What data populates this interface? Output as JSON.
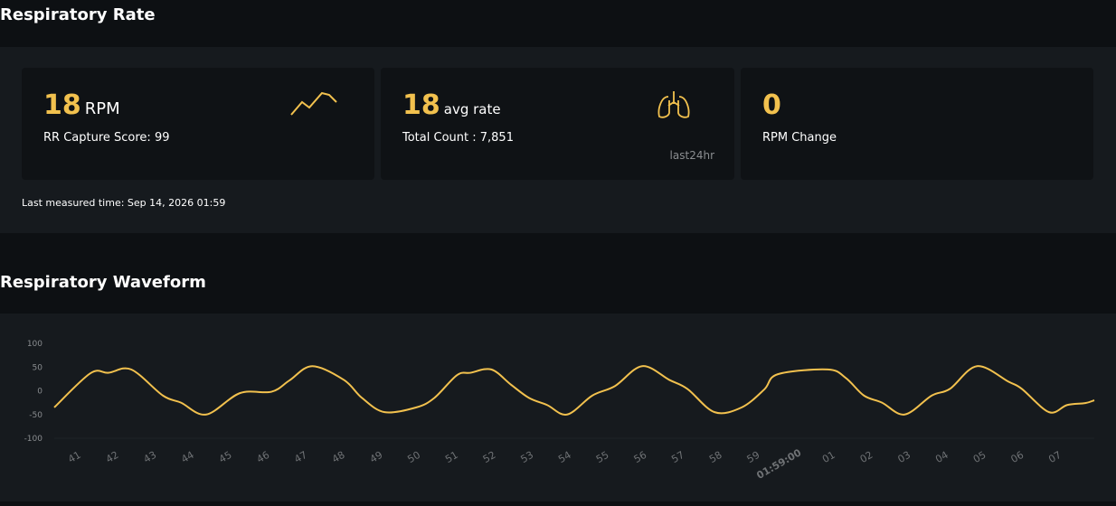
{
  "header": {
    "title": "Respiratory Rate"
  },
  "cards": [
    {
      "value": 18,
      "unit": "RPM",
      "subtitle": "RR Capture Score: 99"
    },
    {
      "value": 18,
      "unit": "avg rate",
      "subtitle": "Total Count : 7,851",
      "note": "last24hr"
    },
    {
      "value": 0,
      "subtitle": "RPM Change"
    }
  ],
  "last_measured": "Last measured time: Sep 14, 2026 01:59",
  "chart_data": {
    "type": "line",
    "title": "Respiratory Waveform",
    "x": [
      40.42,
      41.38,
      41.86,
      42.46,
      43.3,
      43.78,
      44.45,
      45.34,
      46.18,
      46.66,
      47.26,
      48.1,
      48.58,
      49.18,
      50.02,
      50.5,
      51.1,
      51.46,
      52.01,
      52.53,
      53.01,
      53.49,
      54.02,
      54.69,
      55.29,
      56.01,
      56.73,
      57.21,
      57.93,
      58.65,
      59.25,
      59.61,
      60.93,
      61.41,
      61.89,
      62.37,
      62.97,
      63.69,
      64.17,
      64.89,
      65.73,
      66.08,
      66.8,
      67.28,
      67.76,
      68.0
    ],
    "series": [
      {
        "color": "#f2c14e",
        "values": [
          -35,
          37,
          38,
          45,
          -10,
          -25,
          -50,
          -5,
          -2,
          22,
          52,
          23,
          -15,
          -45,
          -35,
          -15,
          33,
          38,
          45,
          13,
          -15,
          -30,
          -50,
          -10,
          10,
          52,
          23,
          4,
          -45,
          -35,
          3,
          35,
          45,
          27,
          -10,
          -25,
          -50,
          -10,
          4,
          52,
          19,
          4,
          -45,
          -30,
          -26,
          -20
        ]
      }
    ],
    "xlim": [
      40.42,
      68.0
    ],
    "ylim": [
      -100,
      100
    ],
    "yticks": [
      -100,
      -50,
      0,
      50,
      100
    ],
    "xticks": [
      41,
      42,
      43,
      44,
      45,
      46,
      47,
      48,
      49,
      50,
      51,
      52,
      53,
      54,
      55,
      56,
      57,
      58,
      59,
      {
        "value": 60,
        "label": "01:59:00"
      },
      {
        "value": 61,
        "label": "01"
      },
      {
        "value": 62,
        "label": "02"
      },
      {
        "value": 63,
        "label": "03"
      },
      {
        "value": 64,
        "label": "04"
      },
      {
        "value": 65,
        "label": "05"
      },
      {
        "value": 66,
        "label": "06"
      },
      {
        "value": 67,
        "label": "07"
      }
    ],
    "grid": false
  }
}
